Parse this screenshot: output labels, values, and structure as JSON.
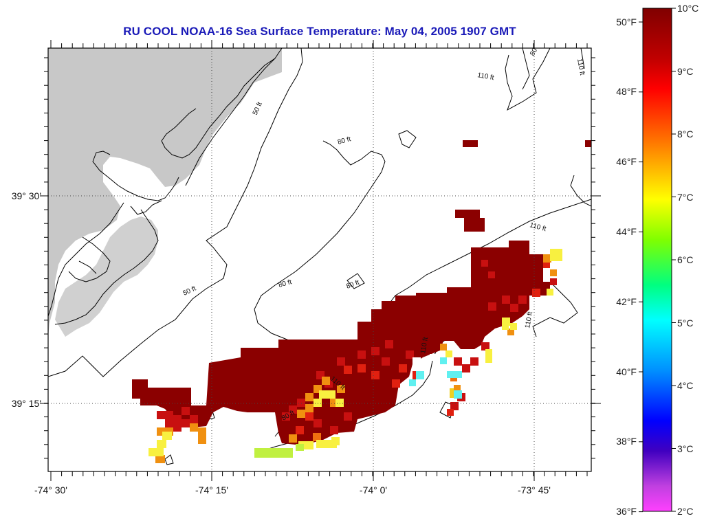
{
  "title": "RU COOL  NOAA-16  Sea Surface Temperature:  May 04, 2005 1907 GMT",
  "map": {
    "x_ticks": [
      "-74° 30'",
      "-74° 15'",
      "-74° 0'",
      "-73° 45'"
    ],
    "y_ticks": [
      "39° 30'",
      "39° 15'"
    ],
    "contour_labels": [
      "110 ft",
      "80",
      "110 ft",
      "50 ft",
      "80 ft",
      "110 ft",
      "80 ft",
      "50 ft",
      "80 ft",
      "110 ft",
      "110 ft",
      "80 ft",
      "110 ft"
    ],
    "colors": {
      "land": "#c8c8c8",
      "sst_high": "#8b0000",
      "coast": "#000000"
    }
  },
  "colorbar": {
    "celsius_labels": [
      "10°C",
      "9°C",
      "8°C",
      "7°C",
      "6°C",
      "5°C",
      "4°C",
      "3°C",
      "2°C"
    ],
    "fahrenheit_labels": [
      "50°F",
      "48°F",
      "46°F",
      "44°F",
      "42°F",
      "40°F",
      "38°F",
      "36°F"
    ],
    "range_c": [
      2,
      10
    ],
    "range_f": [
      36,
      50
    ]
  }
}
